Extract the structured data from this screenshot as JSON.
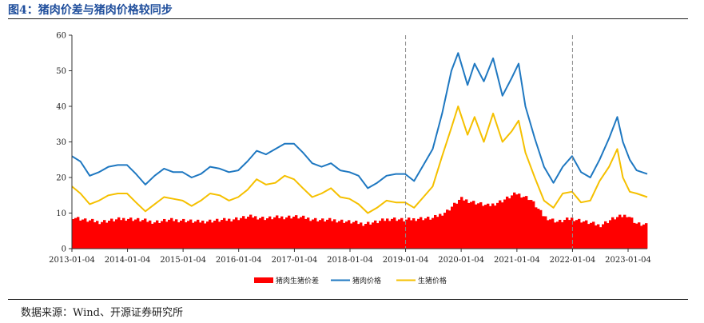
{
  "header": {
    "title": "图4：猪肉价差与猪肉价格较同步"
  },
  "footer": {
    "source": "数据来源：Wind、开源证券研究所"
  },
  "colors": {
    "spread": "#ff0000",
    "pork": "#1f78c1",
    "hog": "#f5c000",
    "vline": "#8c8c8c",
    "title": "#1f4e9c"
  },
  "chart_data": {
    "type": "line",
    "x_type": "date",
    "xlim": [
      "2013-01-04",
      "2023-05-10"
    ],
    "ylim": [
      0,
      60
    ],
    "yticks": [
      0,
      10,
      20,
      30,
      40,
      50,
      60
    ],
    "xticks": [
      "2013-01-04",
      "2014-01-04",
      "2015-01-04",
      "2016-01-04",
      "2017-01-04",
      "2018-01-04",
      "2019-01-04",
      "2020-01-04",
      "2021-01-04",
      "2022-01-04",
      "2023-01-04"
    ],
    "vlines": [
      "2019-01-04",
      "2022-01-04"
    ],
    "grid": false,
    "legend_position": "bottom",
    "series": [
      {
        "name": "猪肉生猪价差",
        "render": "bar",
        "points": [
          [
            "2013-01-04",
            9.0
          ],
          [
            "2013-04-01",
            8.0
          ],
          [
            "2013-07-01",
            7.5
          ],
          [
            "2013-10-01",
            8.0
          ],
          [
            "2014-01-01",
            8.5
          ],
          [
            "2014-04-01",
            8.0
          ],
          [
            "2014-07-01",
            7.5
          ],
          [
            "2014-10-01",
            8.0
          ],
          [
            "2015-01-01",
            8.0
          ],
          [
            "2015-04-01",
            7.5
          ],
          [
            "2015-07-01",
            7.8
          ],
          [
            "2015-10-01",
            8.0
          ],
          [
            "2016-01-01",
            8.5
          ],
          [
            "2016-04-01",
            9.0
          ],
          [
            "2016-07-01",
            8.5
          ],
          [
            "2016-10-01",
            8.8
          ],
          [
            "2017-01-01",
            9.0
          ],
          [
            "2017-04-01",
            8.5
          ],
          [
            "2017-07-01",
            8.0
          ],
          [
            "2017-10-01",
            8.0
          ],
          [
            "2018-01-01",
            7.5
          ],
          [
            "2018-04-01",
            7.0
          ],
          [
            "2018-07-01",
            7.5
          ],
          [
            "2018-10-01",
            8.5
          ],
          [
            "2019-01-01",
            8.0
          ],
          [
            "2019-04-01",
            8.5
          ],
          [
            "2019-07-01",
            8.5
          ],
          [
            "2019-10-01",
            10.5
          ],
          [
            "2020-01-01",
            14.0
          ],
          [
            "2020-04-01",
            13.0
          ],
          [
            "2020-07-01",
            12.0
          ],
          [
            "2020-10-01",
            13.5
          ],
          [
            "2021-01-01",
            15.5
          ],
          [
            "2021-04-01",
            14.0
          ],
          [
            "2021-07-01",
            9.0
          ],
          [
            "2021-10-01",
            7.5
          ],
          [
            "2022-01-01",
            8.5
          ],
          [
            "2022-04-01",
            7.5
          ],
          [
            "2022-07-01",
            6.5
          ],
          [
            "2022-10-01",
            8.5
          ],
          [
            "2023-01-01",
            9.5
          ],
          [
            "2023-03-01",
            7.0
          ],
          [
            "2023-05-10",
            6.5
          ]
        ]
      },
      {
        "name": "猪肉价格",
        "render": "line",
        "points": [
          [
            "2013-01-04",
            26.0
          ],
          [
            "2013-03-01",
            24.5
          ],
          [
            "2013-05-01",
            20.5
          ],
          [
            "2013-07-01",
            21.5
          ],
          [
            "2013-09-01",
            23.0
          ],
          [
            "2013-11-01",
            23.5
          ],
          [
            "2014-01-01",
            23.5
          ],
          [
            "2014-03-01",
            21.0
          ],
          [
            "2014-05-01",
            18.0
          ],
          [
            "2014-07-01",
            20.5
          ],
          [
            "2014-09-01",
            22.5
          ],
          [
            "2014-11-01",
            21.5
          ],
          [
            "2015-01-01",
            21.5
          ],
          [
            "2015-03-01",
            20.0
          ],
          [
            "2015-05-01",
            21.0
          ],
          [
            "2015-07-01",
            23.0
          ],
          [
            "2015-09-01",
            22.5
          ],
          [
            "2015-11-01",
            21.5
          ],
          [
            "2016-01-01",
            22.0
          ],
          [
            "2016-03-01",
            24.5
          ],
          [
            "2016-05-01",
            27.5
          ],
          [
            "2016-07-01",
            26.5
          ],
          [
            "2016-09-01",
            28.0
          ],
          [
            "2016-11-01",
            29.5
          ],
          [
            "2017-01-01",
            29.5
          ],
          [
            "2017-03-01",
            27.0
          ],
          [
            "2017-05-01",
            24.0
          ],
          [
            "2017-07-01",
            23.0
          ],
          [
            "2017-09-01",
            24.0
          ],
          [
            "2017-11-01",
            22.0
          ],
          [
            "2018-01-01",
            21.5
          ],
          [
            "2018-03-01",
            20.5
          ],
          [
            "2018-05-01",
            17.0
          ],
          [
            "2018-07-01",
            18.5
          ],
          [
            "2018-09-01",
            20.5
          ],
          [
            "2018-11-01",
            21.0
          ],
          [
            "2019-01-01",
            21.0
          ],
          [
            "2019-03-01",
            19.0
          ],
          [
            "2019-05-01",
            23.5
          ],
          [
            "2019-07-01",
            28.0
          ],
          [
            "2019-09-01",
            38.0
          ],
          [
            "2019-11-01",
            50.0
          ],
          [
            "2019-12-15",
            55.0
          ],
          [
            "2020-02-15",
            46.0
          ],
          [
            "2020-04-01",
            52.0
          ],
          [
            "2020-06-01",
            47.0
          ],
          [
            "2020-08-01",
            53.5
          ],
          [
            "2020-10-01",
            43.0
          ],
          [
            "2020-12-01",
            48.0
          ],
          [
            "2021-01-15",
            52.0
          ],
          [
            "2021-03-01",
            40.0
          ],
          [
            "2021-05-01",
            31.0
          ],
          [
            "2021-07-01",
            23.0
          ],
          [
            "2021-09-01",
            18.5
          ],
          [
            "2021-11-01",
            23.0
          ],
          [
            "2022-01-01",
            26.0
          ],
          [
            "2022-03-01",
            21.5
          ],
          [
            "2022-05-01",
            20.0
          ],
          [
            "2022-07-01",
            25.0
          ],
          [
            "2022-09-01",
            31.0
          ],
          [
            "2022-10-25",
            37.0
          ],
          [
            "2022-12-01",
            30.0
          ],
          [
            "2023-01-15",
            25.0
          ],
          [
            "2023-03-01",
            22.0
          ],
          [
            "2023-05-10",
            21.0
          ]
        ]
      },
      {
        "name": "生猪价格",
        "render": "line",
        "points": [
          [
            "2013-01-04",
            17.5
          ],
          [
            "2013-03-01",
            15.5
          ],
          [
            "2013-05-01",
            12.5
          ],
          [
            "2013-07-01",
            13.5
          ],
          [
            "2013-09-01",
            15.0
          ],
          [
            "2013-11-01",
            15.5
          ],
          [
            "2014-01-01",
            15.5
          ],
          [
            "2014-03-01",
            13.0
          ],
          [
            "2014-05-01",
            10.5
          ],
          [
            "2014-07-01",
            12.5
          ],
          [
            "2014-09-01",
            14.5
          ],
          [
            "2014-11-01",
            14.0
          ],
          [
            "2015-01-01",
            13.5
          ],
          [
            "2015-03-01",
            12.0
          ],
          [
            "2015-05-01",
            13.5
          ],
          [
            "2015-07-01",
            15.5
          ],
          [
            "2015-09-01",
            15.0
          ],
          [
            "2015-11-01",
            13.5
          ],
          [
            "2016-01-01",
            14.5
          ],
          [
            "2016-03-01",
            16.5
          ],
          [
            "2016-05-01",
            19.5
          ],
          [
            "2016-07-01",
            18.0
          ],
          [
            "2016-09-01",
            18.5
          ],
          [
            "2016-11-01",
            20.5
          ],
          [
            "2017-01-01",
            19.5
          ],
          [
            "2017-03-01",
            17.0
          ],
          [
            "2017-05-01",
            14.5
          ],
          [
            "2017-07-01",
            15.5
          ],
          [
            "2017-09-01",
            17.0
          ],
          [
            "2017-11-01",
            14.5
          ],
          [
            "2018-01-01",
            14.0
          ],
          [
            "2018-03-01",
            12.5
          ],
          [
            "2018-05-01",
            10.0
          ],
          [
            "2018-07-01",
            11.5
          ],
          [
            "2018-09-01",
            13.5
          ],
          [
            "2018-11-01",
            13.0
          ],
          [
            "2019-01-01",
            13.0
          ],
          [
            "2019-03-01",
            11.5
          ],
          [
            "2019-05-01",
            14.5
          ],
          [
            "2019-07-01",
            17.5
          ],
          [
            "2019-09-01",
            26.0
          ],
          [
            "2019-11-01",
            34.0
          ],
          [
            "2019-12-15",
            40.0
          ],
          [
            "2020-02-15",
            32.0
          ],
          [
            "2020-04-01",
            37.0
          ],
          [
            "2020-06-01",
            30.0
          ],
          [
            "2020-08-01",
            38.0
          ],
          [
            "2020-10-01",
            30.0
          ],
          [
            "2020-12-01",
            33.0
          ],
          [
            "2021-01-15",
            36.0
          ],
          [
            "2021-03-01",
            27.0
          ],
          [
            "2021-05-01",
            20.0
          ],
          [
            "2021-07-01",
            13.5
          ],
          [
            "2021-09-01",
            11.5
          ],
          [
            "2021-11-01",
            15.5
          ],
          [
            "2022-01-01",
            16.0
          ],
          [
            "2022-03-01",
            13.0
          ],
          [
            "2022-05-01",
            13.5
          ],
          [
            "2022-07-01",
            19.0
          ],
          [
            "2022-09-01",
            23.0
          ],
          [
            "2022-10-25",
            28.0
          ],
          [
            "2022-12-01",
            20.0
          ],
          [
            "2023-01-15",
            16.0
          ],
          [
            "2023-03-01",
            15.5
          ],
          [
            "2023-05-10",
            14.5
          ]
        ]
      }
    ]
  }
}
